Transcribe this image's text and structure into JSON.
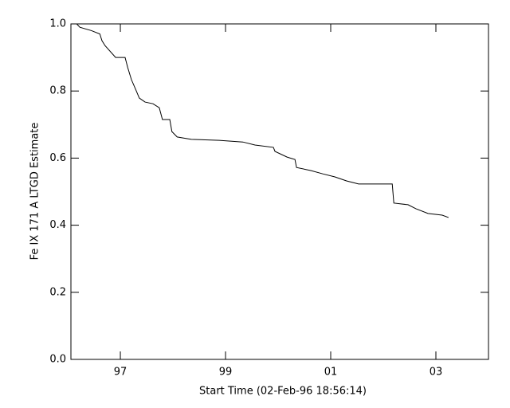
{
  "chart_data": {
    "type": "line",
    "xlabel": "Start Time (02-Feb-96 18:56:14)",
    "ylabel": "Fe IX 171 A LTGD Estimate",
    "xlim": [
      1996.06,
      2004.0
    ],
    "ylim": [
      0,
      1
    ],
    "xticks": [
      {
        "value": 1997,
        "label": "97"
      },
      {
        "value": 1999,
        "label": "99"
      },
      {
        "value": 2001,
        "label": "01"
      },
      {
        "value": 2003,
        "label": "03"
      }
    ],
    "yticks": [
      {
        "value": 0,
        "label": "0.0"
      },
      0.2,
      0.4,
      0.6,
      0.8,
      {
        "value": 1,
        "label": "1.0"
      }
    ],
    "color": "#000000",
    "x": [
      1996.17,
      1996.23,
      1996.45,
      1996.61,
      1996.65,
      1996.71,
      1996.91,
      1997.09,
      1997.14,
      1997.21,
      1997.29,
      1997.36,
      1997.47,
      1997.62,
      1997.74,
      1997.8,
      1997.94,
      1997.98,
      1998.08,
      1998.35,
      1998.88,
      1999.33,
      1999.56,
      1999.91,
      1999.94,
      2000.17,
      2000.32,
      2000.35,
      2000.62,
      2000.85,
      2001.08,
      2001.3,
      2001.53,
      2002.17,
      2002.2,
      2002.47,
      2002.62,
      2002.85,
      2003.12,
      2003.24
    ],
    "values": [
      1.0,
      0.99,
      0.98,
      0.97,
      0.95,
      0.935,
      0.9,
      0.9,
      0.87,
      0.834,
      0.805,
      0.779,
      0.767,
      0.762,
      0.75,
      0.715,
      0.715,
      0.679,
      0.663,
      0.656,
      0.653,
      0.648,
      0.639,
      0.632,
      0.62,
      0.603,
      0.596,
      0.572,
      0.563,
      0.553,
      0.544,
      0.532,
      0.523,
      0.523,
      0.466,
      0.461,
      0.449,
      0.435,
      0.43,
      0.423
    ]
  }
}
